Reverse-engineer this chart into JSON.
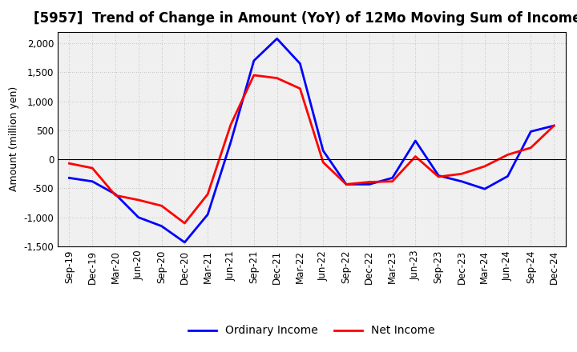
{
  "title": "[5957]  Trend of Change in Amount (YoY) of 12Mo Moving Sum of Incomes",
  "ylabel": "Amount (million yen)",
  "x_labels": [
    "Sep-19",
    "Dec-19",
    "Mar-20",
    "Jun-20",
    "Sep-20",
    "Dec-20",
    "Mar-21",
    "Jun-21",
    "Sep-21",
    "Dec-21",
    "Mar-22",
    "Jun-22",
    "Sep-22",
    "Dec-22",
    "Mar-23",
    "Jun-23",
    "Sep-23",
    "Dec-23",
    "Mar-24",
    "Jun-24",
    "Sep-24",
    "Dec-24"
  ],
  "ordinary_income": [
    -320,
    -380,
    -600,
    -1000,
    -1150,
    -1430,
    -950,
    300,
    1700,
    2080,
    1650,
    150,
    -430,
    -430,
    -320,
    320,
    -280,
    -380,
    -510,
    -290,
    480,
    580
  ],
  "net_income": [
    -70,
    -150,
    -620,
    -700,
    -800,
    -1100,
    -600,
    600,
    1450,
    1400,
    1220,
    -50,
    -430,
    -390,
    -380,
    50,
    -300,
    -250,
    -120,
    80,
    200,
    580
  ],
  "ordinary_income_color": "#0000FF",
  "net_income_color": "#FF0000",
  "ylim": [
    -1500,
    2200
  ],
  "yticks": [
    -1500,
    -1000,
    -500,
    0,
    500,
    1000,
    1500,
    2000
  ],
  "legend_ordinary": "Ordinary Income",
  "legend_net": "Net Income",
  "bg_color": "#FFFFFF",
  "plot_bg_color": "#F0F0F0",
  "grid_color": "#BBBBBB",
  "line_width": 2.0,
  "title_fontsize": 12,
  "axis_fontsize": 9,
  "tick_fontsize": 8.5
}
